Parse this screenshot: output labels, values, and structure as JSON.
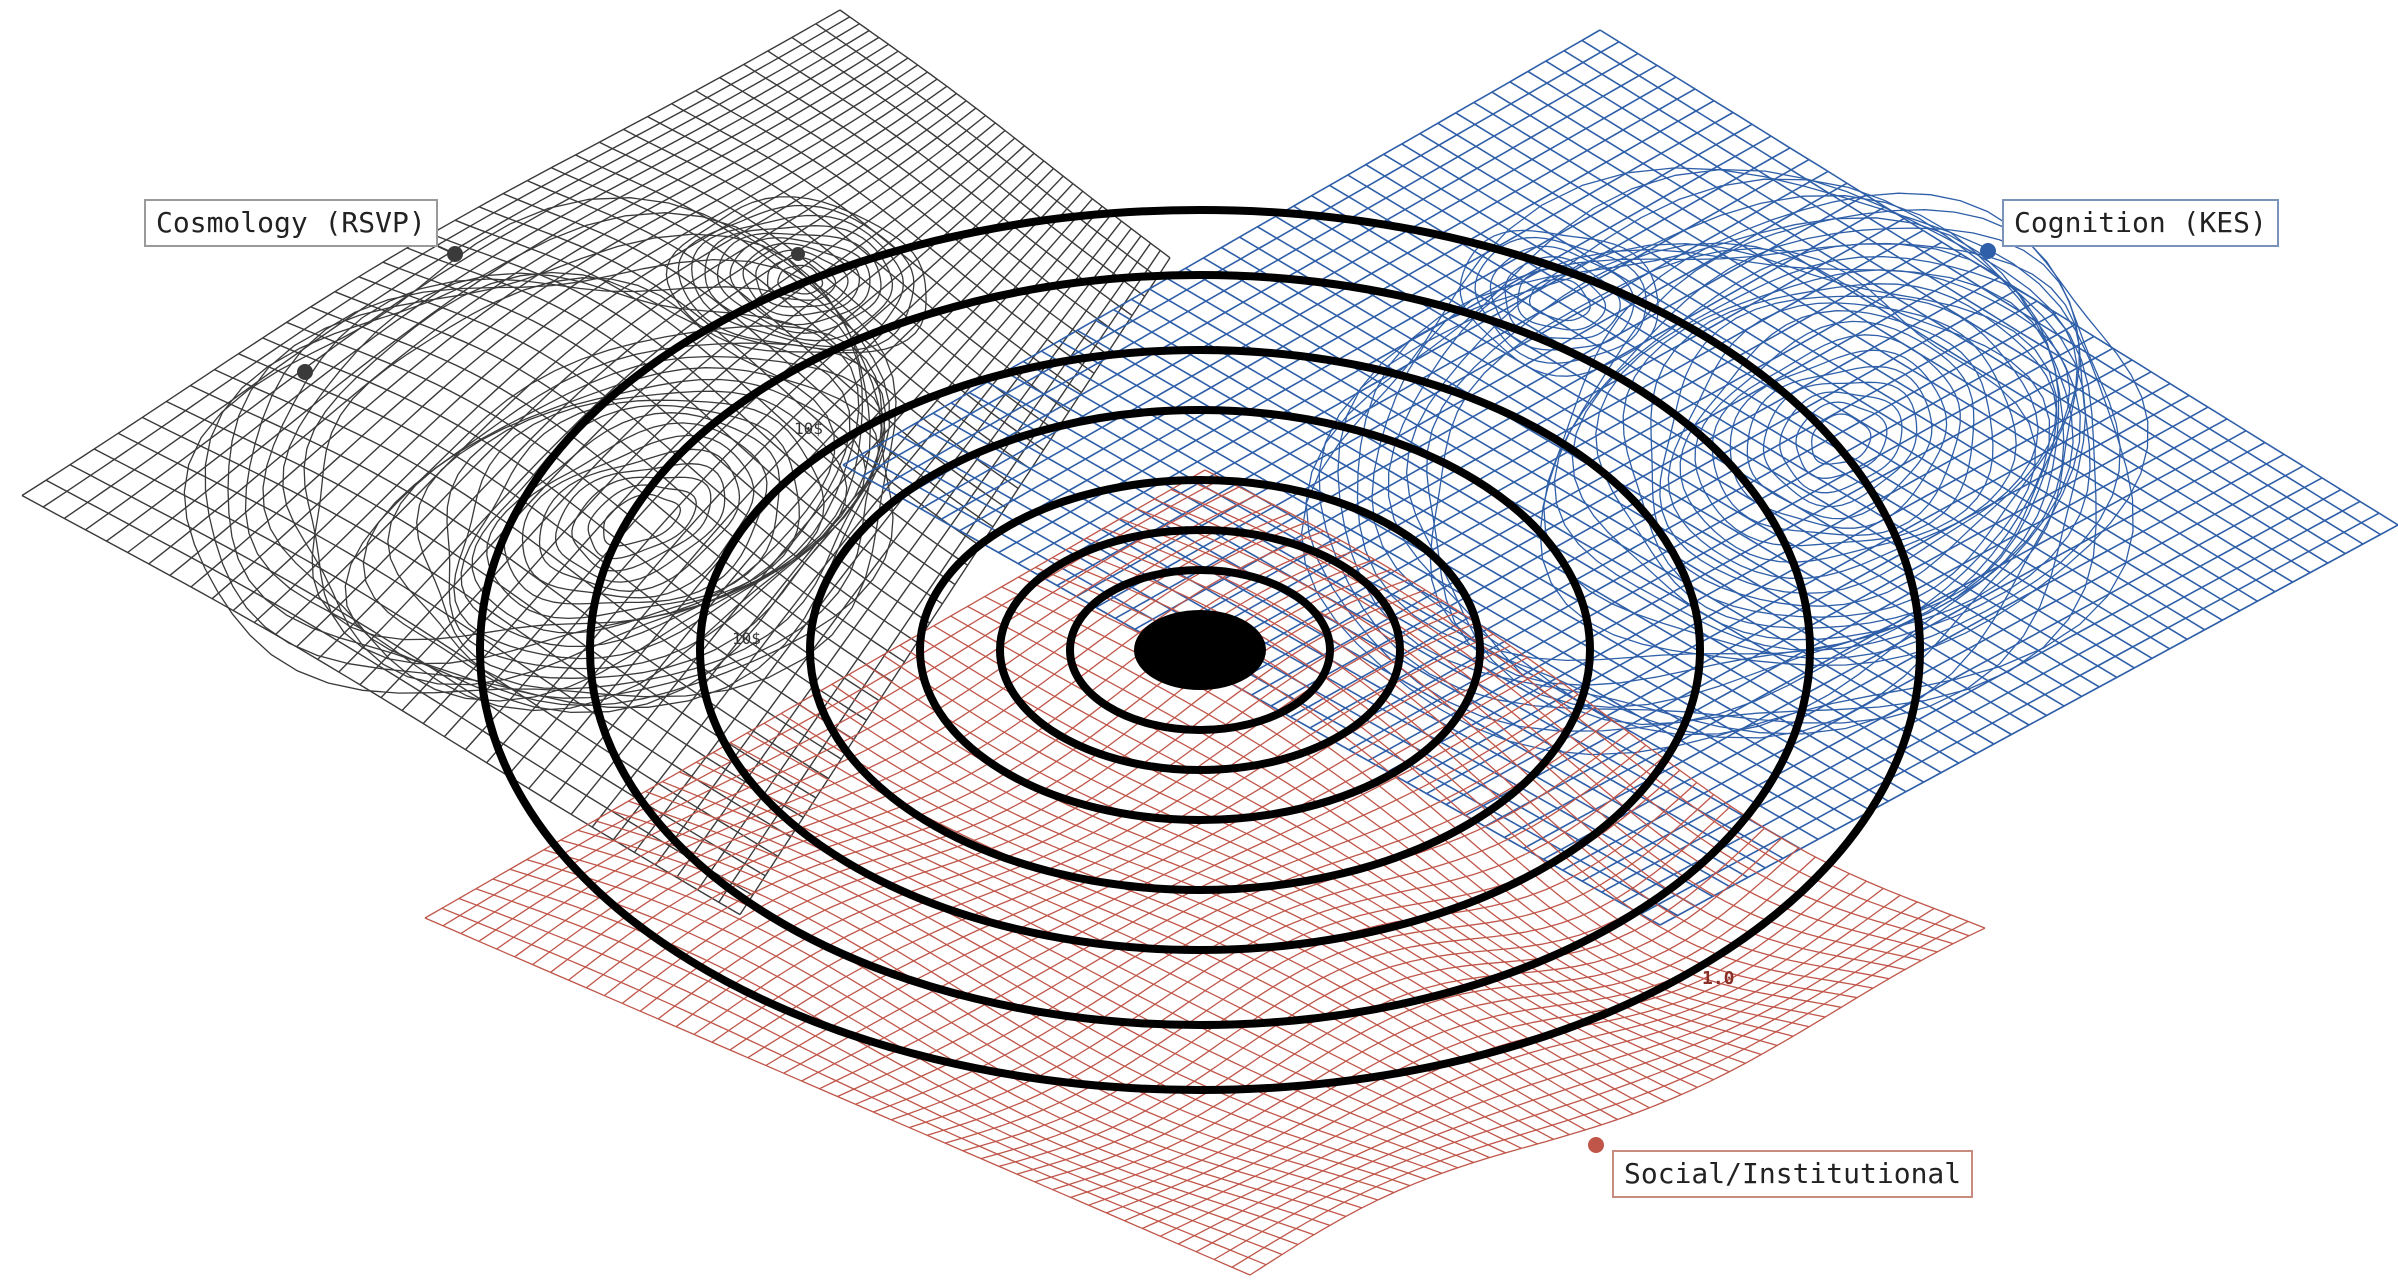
{
  "labels": {
    "cosmology": "Cosmology (RSVP)",
    "cognition": "Cognition (KES)",
    "social": "Social/Institutional"
  },
  "annotations": {
    "tick_a": "10$",
    "tick_b": "10$",
    "tick_c": "1.0"
  },
  "colors": {
    "cosmology": "#3a3a3a",
    "cognition": "#2f5fa8",
    "social": "#c0564a",
    "rings": "#000000"
  },
  "icons": {
    "marker": "dot-marker",
    "center": "singularity-disc"
  }
}
